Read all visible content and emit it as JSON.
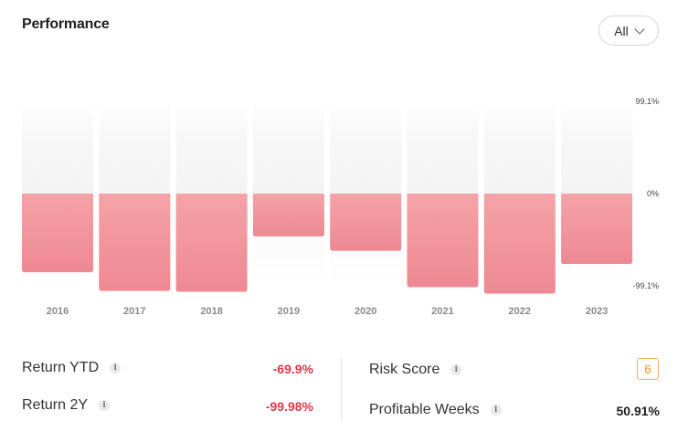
{
  "header": {
    "title": "Performance",
    "filter_selected": "All"
  },
  "chart_data": {
    "type": "bar",
    "categories": [
      "2016",
      "2017",
      "2018",
      "2019",
      "2020",
      "2021",
      "2022",
      "2023"
    ],
    "values": [
      -84.5,
      -104.5,
      -105.5,
      -46.0,
      -61.5,
      -100.5,
      -107.5,
      -75.5
    ],
    "y_tick_labels": [
      "99.1%",
      "0%",
      "-99.1%"
    ],
    "ylim": [
      -99.1,
      99.1
    ],
    "grid": false,
    "colors": {
      "negative_top": "#f4a5a8",
      "negative_bottom": "#ee8994",
      "track": "#f6f6f6"
    }
  },
  "stats": {
    "return_ytd": {
      "label": "Return YTD",
      "value": "-69.9%"
    },
    "return_2y": {
      "label": "Return 2Y",
      "value": "-99.98%"
    },
    "risk_score": {
      "label": "Risk Score",
      "value": "6"
    },
    "profitable_weeks": {
      "label": "Profitable Weeks",
      "value": "50.91%"
    }
  },
  "colors": {
    "negative_text": "#e0384a",
    "risk_badge": "#e99a2a"
  }
}
